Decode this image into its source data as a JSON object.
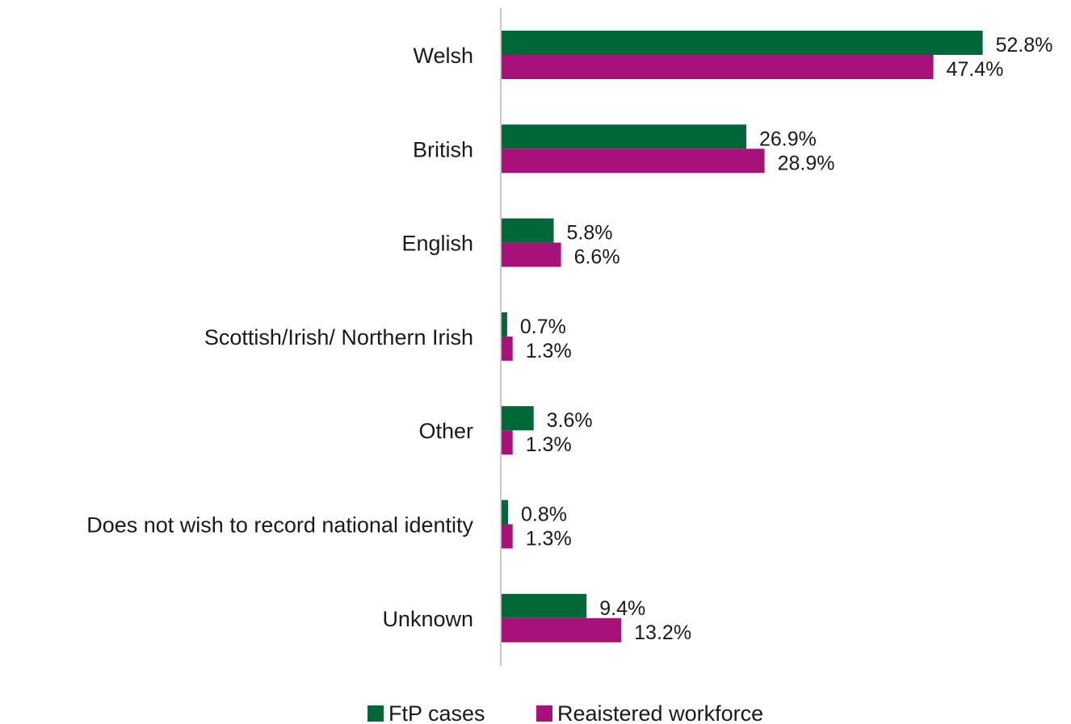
{
  "chart_data": {
    "type": "bar",
    "orientation": "horizontal",
    "categories": [
      "Welsh",
      "British",
      "English",
      "Scottish/Irish/ Northern Irish",
      "Other",
      "Does not wish to record national identity",
      "Unknown"
    ],
    "series": [
      {
        "name": "FtP cases",
        "color": "#006837",
        "values": [
          52.8,
          26.9,
          5.8,
          0.7,
          3.6,
          0.8,
          9.4
        ],
        "labels": [
          "52.8%",
          "26.9%",
          "5.8%",
          "0.7%",
          "3.6%",
          "0.8%",
          "9.4%"
        ]
      },
      {
        "name": "Reaistered workforce",
        "color": "#a8107a",
        "values": [
          47.4,
          28.9,
          6.6,
          1.3,
          1.3,
          1.3,
          13.2
        ],
        "labels": [
          "47.4%",
          "28.9%",
          "6.6%",
          "1.3%",
          "1.3%",
          "1.3%",
          "13.2%"
        ]
      }
    ],
    "xlim": [
      0,
      55
    ],
    "legend_position": "bottom",
    "grid": false
  }
}
